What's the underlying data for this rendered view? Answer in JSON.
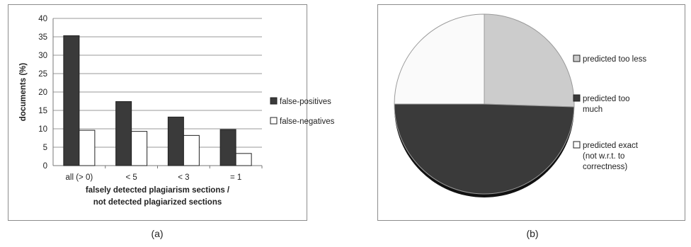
{
  "captions": {
    "a": "(a)",
    "b": "(b)"
  },
  "chart_data": [
    {
      "type": "bar",
      "title": "",
      "xlabel": "falsely detected plagiarism sections / not detected plagiarized sections",
      "xlabel_lines": [
        "falsely detected plagiarism sections /",
        "not detected plagiarized sections"
      ],
      "ylabel": "documents (%)",
      "ylim": [
        0,
        40
      ],
      "yticks": [
        "0",
        "5",
        "10",
        "15",
        "20",
        "25",
        "30",
        "35",
        "40"
      ],
      "grid": true,
      "legend_placement": "right",
      "categories": [
        "all (> 0)",
        "< 5",
        "< 3",
        "= 1"
      ],
      "series": [
        {
          "name": "false-positives",
          "values": [
            35.3,
            17.4,
            13.2,
            9.8
          ],
          "color": "#3a3a3a"
        },
        {
          "name": "false-negatives",
          "values": [
            9.6,
            9.3,
            8.2,
            3.3
          ],
          "color": "#ffffff"
        }
      ]
    },
    {
      "type": "pie",
      "title": "",
      "legend_placement": "right",
      "slices": [
        {
          "label": "predicted too less",
          "value": 25.5,
          "color": "#cccccc"
        },
        {
          "label": "predicted too much",
          "value": 49.5,
          "color": "#3a3a3a"
        },
        {
          "label": "predicted exact (not w.r.t. to correctness)",
          "value": 25.0,
          "color": "#fafafa"
        }
      ],
      "legend_lines": [
        [
          "predicted too less"
        ],
        [
          "predicted too",
          "much"
        ],
        [
          "predicted exact",
          "(not w.r.t. to",
          "correctness)"
        ]
      ]
    }
  ]
}
